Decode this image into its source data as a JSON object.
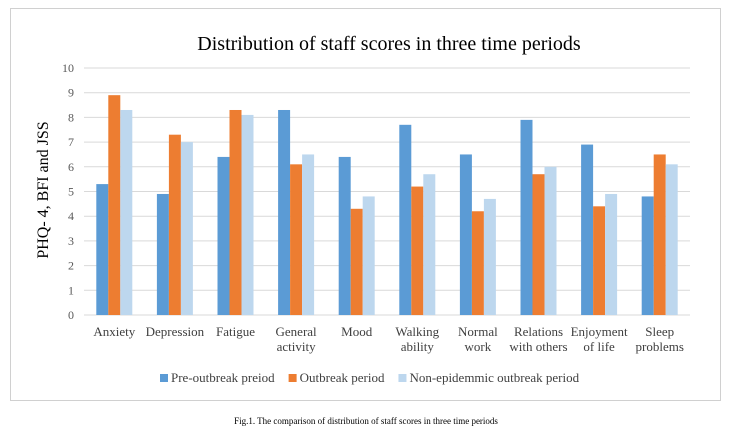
{
  "chart_data": {
    "type": "bar",
    "title": "Distribution of staff scores in three time periods",
    "ylabel": "PHQ- 4, BFI and JSS",
    "xlabel": "",
    "ylim": [
      0,
      10
    ],
    "yticks": [
      0,
      1,
      2,
      3,
      4,
      5,
      6,
      7,
      8,
      9,
      10
    ],
    "grid": true,
    "legend_position": "bottom",
    "categories": [
      [
        "Anxiety"
      ],
      [
        "Depression"
      ],
      [
        "Fatigue"
      ],
      [
        "General",
        "activity"
      ],
      [
        "Mood"
      ],
      [
        "Walking",
        "ability"
      ],
      [
        "Normal",
        "work"
      ],
      [
        "Relations",
        "with others"
      ],
      [
        "Enjoyment",
        "of life"
      ],
      [
        "Sleep",
        "problems"
      ]
    ],
    "series": [
      {
        "name": "Pre-outbreak preiod",
        "color": "#5b9bd5",
        "values": [
          5.3,
          4.9,
          6.4,
          8.3,
          6.4,
          7.7,
          6.5,
          7.9,
          6.9,
          4.8
        ]
      },
      {
        "name": "Outbreak period",
        "color": "#ed7d31",
        "values": [
          8.9,
          7.3,
          8.3,
          6.1,
          4.3,
          5.2,
          4.2,
          5.7,
          4.4,
          6.5
        ]
      },
      {
        "name": "Non-epidemmic outbreak period",
        "color": "#bdd7ee",
        "values": [
          8.3,
          7.0,
          8.1,
          6.5,
          4.8,
          5.7,
          4.7,
          6.0,
          4.9,
          6.1
        ]
      }
    ]
  },
  "caption": "Fig.1. The comparison of distribution of staff scores in three time periods",
  "colors": {
    "grid": "#d9d9d9",
    "axis_text": "#595959"
  }
}
